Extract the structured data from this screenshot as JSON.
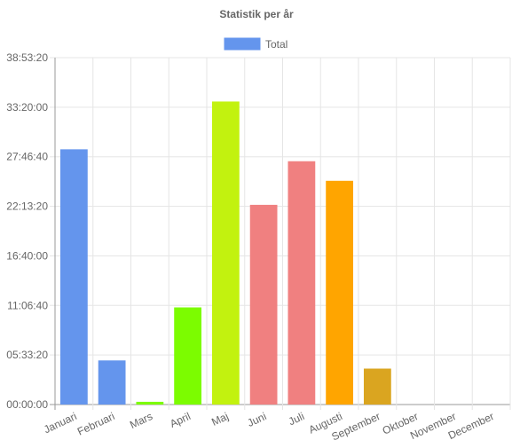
{
  "chart_data": {
    "type": "bar",
    "title": "Statistik per år",
    "legend": {
      "position": "top-center",
      "label": "Total",
      "color": "#6495ED"
    },
    "y_unit": "hh:mm:ss",
    "ylim_seconds": [
      0,
      140000
    ],
    "y_tick_step_seconds": 20000,
    "y_ticks": [
      "00:00:00",
      "05:33:20",
      "11:06:40",
      "16:40:00",
      "22:13:20",
      "27:46:40",
      "33:20:00",
      "38:53:20"
    ],
    "categories": [
      "Januari",
      "Februari",
      "Mars",
      "April",
      "Maj",
      "Juni",
      "Juli",
      "Augusti",
      "September",
      "Oktober",
      "November",
      "December"
    ],
    "series": [
      {
        "name": "Total",
        "values_seconds": [
          103000,
          17800,
          1100,
          39200,
          122300,
          80600,
          98200,
          90300,
          14500,
          0,
          0,
          0
        ],
        "colors": [
          "#6495ED",
          "#6495ED",
          "#7CFC00",
          "#7CFC00",
          "#C2F20F",
          "#F08080",
          "#F08080",
          "#FFA500",
          "#DAA520",
          "#6495ED",
          "#6495ED",
          "#6495ED"
        ]
      }
    ],
    "grid": true
  }
}
